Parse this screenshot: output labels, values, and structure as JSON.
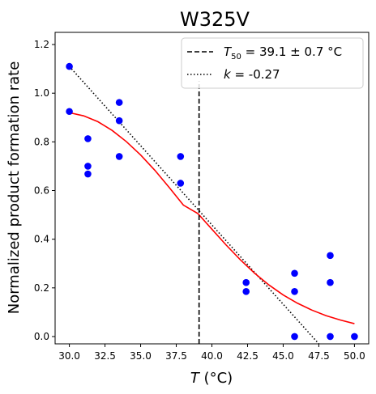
{
  "chart_data": {
    "type": "scatter",
    "title": "W325V",
    "xlabel_symbol": "T",
    "xlabel_unit": " (°C)",
    "ylabel": "Normalized product formation rate",
    "xlim": [
      29.0,
      51.0
    ],
    "ylim": [
      -0.03,
      1.25
    ],
    "x_ticks": [
      "30.0",
      "32.5",
      "35.0",
      "37.5",
      "40.0",
      "42.5",
      "45.0",
      "47.5",
      "50.0"
    ],
    "y_ticks": [
      "0.0",
      "0.2",
      "0.4",
      "0.6",
      "0.8",
      "1.0",
      "1.2"
    ],
    "grid": false,
    "legend_position": "top-right",
    "points": {
      "color": "#0000ff",
      "x": [
        30.0,
        30.0,
        31.3,
        31.3,
        31.3,
        33.5,
        33.5,
        33.5,
        37.8,
        37.8,
        42.4,
        42.4,
        45.8,
        45.8,
        45.8,
        48.3,
        48.3,
        48.3,
        50.0
      ],
      "y": [
        1.11,
        0.925,
        0.813,
        0.7,
        0.668,
        0.962,
        0.887,
        0.74,
        0.74,
        0.63,
        0.222,
        0.185,
        0.26,
        0.185,
        0.0,
        0.333,
        0.222,
        0.0,
        0.0
      ]
    },
    "fit_curve": {
      "color": "#ff0000",
      "x": [
        30.0,
        31.0,
        32.0,
        33.0,
        34.0,
        35.0,
        36.0,
        37.0,
        38.0,
        39.0,
        39.1,
        40.0,
        41.0,
        42.0,
        43.0,
        44.0,
        45.0,
        46.0,
        47.0,
        48.0,
        49.0,
        50.0
      ],
      "y": [
        0.92,
        0.907,
        0.883,
        0.847,
        0.801,
        0.746,
        0.683,
        0.613,
        0.54,
        0.506,
        0.5,
        0.441,
        0.376,
        0.315,
        0.26,
        0.212,
        0.171,
        0.137,
        0.109,
        0.086,
        0.068,
        0.053
      ]
    },
    "t50_line": {
      "x": 39.1,
      "y_top": 1.05,
      "color": "#000000",
      "legend_sub": "50",
      "legend_prefix": "T",
      "legend_value": " = 39.1 ± 0.7 °C"
    },
    "slope_line": {
      "color": "#000000",
      "x": [
        30.0,
        47.5
      ],
      "y": [
        1.11,
        -0.03
      ],
      "legend_symbol": "k",
      "legend_value": " = -0.27"
    }
  }
}
